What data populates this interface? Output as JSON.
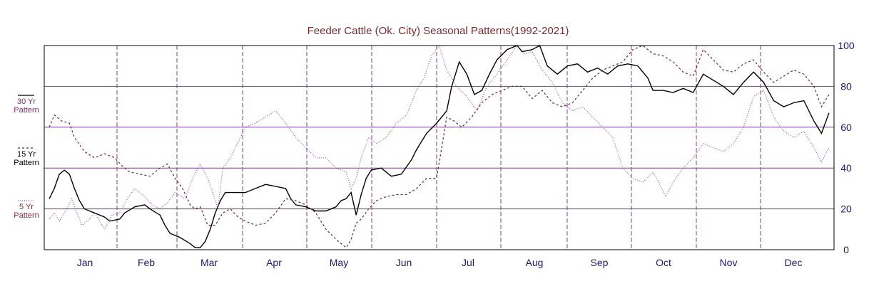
{
  "chart_data": {
    "type": "line",
    "title": "Feeder Cattle (Ok. City) Seasonal Patterns(1992-2021)",
    "xlabel": "",
    "ylabel": "",
    "ylim": [
      0,
      100
    ],
    "y_ticks": [
      0,
      20,
      40,
      60,
      80,
      100
    ],
    "grid": true,
    "legend_position": "left",
    "months": [
      "Jan",
      "Feb",
      "Mar",
      "Apr",
      "May",
      "Jun",
      "Jul",
      "Aug",
      "Sep",
      "Oct",
      "Nov",
      "Dec"
    ],
    "x_unit": "month (fractional, 0 = Jan 1, 12 = Dec 31)",
    "series": [
      {
        "name": "30 Yr Pattern",
        "legend_line1": "30 Yr",
        "legend_line2": "Pattern",
        "color": "#000000",
        "dash": "solid",
        "points": [
          [
            0.1,
            25
          ],
          [
            0.2,
            30
          ],
          [
            0.3,
            37
          ],
          [
            0.4,
            39
          ],
          [
            0.5,
            37
          ],
          [
            0.6,
            30
          ],
          [
            0.7,
            24
          ],
          [
            0.8,
            20
          ],
          [
            1.0,
            18
          ],
          [
            1.2,
            16
          ],
          [
            1.3,
            14
          ],
          [
            1.5,
            15
          ],
          [
            1.6,
            18
          ],
          [
            1.8,
            21
          ],
          [
            2.0,
            22
          ],
          [
            2.1,
            20
          ],
          [
            2.3,
            17
          ],
          [
            2.4,
            12
          ],
          [
            2.5,
            8
          ],
          [
            2.7,
            6
          ],
          [
            2.9,
            3
          ],
          [
            3.0,
            1
          ],
          [
            3.1,
            1
          ],
          [
            3.2,
            4
          ],
          [
            3.3,
            10
          ],
          [
            3.4,
            18
          ],
          [
            3.5,
            24
          ],
          [
            3.6,
            28
          ],
          [
            3.8,
            28
          ],
          [
            4.0,
            28
          ],
          [
            4.2,
            30
          ],
          [
            4.4,
            32
          ],
          [
            4.6,
            31
          ],
          [
            4.8,
            30
          ],
          [
            4.9,
            25
          ],
          [
            5.0,
            22
          ],
          [
            5.2,
            21
          ],
          [
            5.4,
            19
          ],
          [
            5.6,
            19
          ],
          [
            5.8,
            21
          ],
          [
            5.9,
            24
          ],
          [
            6.0,
            25
          ],
          [
            6.1,
            28
          ],
          [
            6.2,
            17
          ],
          [
            6.3,
            27
          ],
          [
            6.4,
            35
          ],
          [
            6.5,
            39
          ],
          [
            6.7,
            40
          ],
          [
            6.9,
            36
          ],
          [
            7.1,
            37
          ],
          [
            7.3,
            44
          ],
          [
            7.4,
            49
          ],
          [
            7.6,
            57
          ],
          [
            7.8,
            62
          ],
          [
            8.0,
            68
          ],
          [
            8.1,
            80
          ],
          [
            8.25,
            92
          ],
          [
            8.4,
            86
          ],
          [
            8.55,
            76
          ],
          [
            8.7,
            78
          ],
          [
            8.85,
            86
          ],
          [
            9.0,
            93
          ],
          [
            9.2,
            98
          ],
          [
            9.4,
            100
          ],
          [
            9.5,
            97
          ],
          [
            9.7,
            98
          ],
          [
            9.85,
            100
          ],
          [
            10.0,
            90
          ],
          [
            10.2,
            86
          ],
          [
            10.4,
            90
          ],
          [
            10.6,
            91
          ],
          [
            10.8,
            87
          ],
          [
            11.0,
            89
          ],
          [
            11.2,
            86
          ],
          [
            11.4,
            90
          ],
          [
            11.6,
            91
          ],
          [
            11.8,
            90
          ],
          [
            12.0,
            84
          ],
          [
            12.1,
            78
          ],
          [
            12.3,
            78
          ],
          [
            12.5,
            77
          ],
          [
            12.7,
            79
          ],
          [
            12.9,
            77
          ],
          [
            13.1,
            86
          ],
          [
            13.3,
            83
          ],
          [
            13.5,
            80
          ],
          [
            13.7,
            76
          ],
          [
            13.9,
            82
          ],
          [
            14.1,
            87
          ],
          [
            14.3,
            82
          ],
          [
            14.5,
            73
          ],
          [
            14.7,
            70
          ],
          [
            14.9,
            72
          ],
          [
            15.1,
            73
          ],
          [
            15.3,
            63
          ],
          [
            15.45,
            57
          ],
          [
            15.6,
            67
          ]
        ]
      },
      {
        "name": "15 Yr Pattern",
        "legend_line1": "15 Yr",
        "legend_line2": "Pattern",
        "color": "#6b2a30",
        "dash": "3,3",
        "points": [
          [
            0.1,
            60
          ],
          [
            0.2,
            66
          ],
          [
            0.35,
            63
          ],
          [
            0.5,
            62
          ],
          [
            0.6,
            55
          ],
          [
            0.8,
            48
          ],
          [
            1.0,
            45
          ],
          [
            1.2,
            47
          ],
          [
            1.4,
            45
          ],
          [
            1.55,
            41
          ],
          [
            1.7,
            38
          ],
          [
            1.9,
            37
          ],
          [
            2.1,
            36
          ],
          [
            2.3,
            40
          ],
          [
            2.45,
            42
          ],
          [
            2.6,
            35
          ],
          [
            2.75,
            30
          ],
          [
            2.9,
            22
          ],
          [
            3.0,
            20
          ],
          [
            3.1,
            21
          ],
          [
            3.25,
            12
          ],
          [
            3.4,
            12
          ],
          [
            3.55,
            18
          ],
          [
            3.7,
            20
          ],
          [
            3.85,
            16
          ],
          [
            4.0,
            14
          ],
          [
            4.2,
            12
          ],
          [
            4.4,
            13
          ],
          [
            4.6,
            18
          ],
          [
            4.8,
            25
          ],
          [
            5.0,
            24
          ],
          [
            5.2,
            22
          ],
          [
            5.4,
            18
          ],
          [
            5.6,
            10
          ],
          [
            5.8,
            5
          ],
          [
            6.0,
            1
          ],
          [
            6.1,
            5
          ],
          [
            6.2,
            13
          ],
          [
            6.3,
            15
          ],
          [
            6.45,
            20
          ],
          [
            6.6,
            24
          ],
          [
            6.8,
            26
          ],
          [
            7.0,
            27
          ],
          [
            7.2,
            27
          ],
          [
            7.4,
            30
          ],
          [
            7.6,
            35
          ],
          [
            7.8,
            35
          ],
          [
            8.0,
            65
          ],
          [
            8.15,
            63
          ],
          [
            8.3,
            60
          ],
          [
            8.5,
            65
          ],
          [
            8.7,
            72
          ],
          [
            8.9,
            76
          ],
          [
            9.1,
            78
          ],
          [
            9.3,
            80
          ],
          [
            9.5,
            80
          ],
          [
            9.7,
            74
          ],
          [
            9.9,
            78
          ],
          [
            10.1,
            72
          ],
          [
            10.3,
            70
          ],
          [
            10.5,
            72
          ],
          [
            10.7,
            78
          ],
          [
            10.9,
            84
          ],
          [
            11.1,
            88
          ],
          [
            11.3,
            90
          ],
          [
            11.5,
            92
          ],
          [
            11.7,
            98
          ],
          [
            11.9,
            100
          ],
          [
            12.1,
            96
          ],
          [
            12.3,
            95
          ],
          [
            12.5,
            92
          ],
          [
            12.7,
            87
          ],
          [
            12.9,
            85
          ],
          [
            13.1,
            98
          ],
          [
            13.3,
            93
          ],
          [
            13.5,
            88
          ],
          [
            13.7,
            87
          ],
          [
            13.9,
            91
          ],
          [
            14.1,
            93
          ],
          [
            14.3,
            87
          ],
          [
            14.5,
            82
          ],
          [
            14.7,
            85
          ],
          [
            14.9,
            88
          ],
          [
            15.1,
            86
          ],
          [
            15.3,
            80
          ],
          [
            15.45,
            70
          ],
          [
            15.6,
            76
          ]
        ]
      },
      {
        "name": "5 Yr Pattern",
        "legend_line1": "5 Yr",
        "legend_line2": "Pattern",
        "color": "#9155a8",
        "dash": "1,2",
        "points": [
          [
            0.1,
            15
          ],
          [
            0.2,
            18
          ],
          [
            0.3,
            14
          ],
          [
            0.45,
            20
          ],
          [
            0.55,
            25
          ],
          [
            0.65,
            18
          ],
          [
            0.75,
            12
          ],
          [
            0.9,
            15
          ],
          [
            1.0,
            18
          ],
          [
            1.2,
            10
          ],
          [
            1.35,
            17
          ],
          [
            1.5,
            18
          ],
          [
            1.65,
            25
          ],
          [
            1.8,
            30
          ],
          [
            2.0,
            26
          ],
          [
            2.15,
            22
          ],
          [
            2.3,
            20
          ],
          [
            2.45,
            23
          ],
          [
            2.6,
            28
          ],
          [
            2.8,
            25
          ],
          [
            2.95,
            35
          ],
          [
            3.1,
            42
          ],
          [
            3.25,
            35
          ],
          [
            3.35,
            28
          ],
          [
            3.45,
            20
          ],
          [
            3.55,
            40
          ],
          [
            3.7,
            45
          ],
          [
            3.9,
            55
          ],
          [
            4.0,
            60
          ],
          [
            4.2,
            62
          ],
          [
            4.4,
            65
          ],
          [
            4.6,
            68
          ],
          [
            4.8,
            62
          ],
          [
            5.0,
            55
          ],
          [
            5.2,
            50
          ],
          [
            5.4,
            45
          ],
          [
            5.6,
            45
          ],
          [
            5.8,
            40
          ],
          [
            6.0,
            38
          ],
          [
            6.1,
            30
          ],
          [
            6.2,
            35
          ],
          [
            6.3,
            45
          ],
          [
            6.45,
            55
          ],
          [
            6.6,
            52
          ],
          [
            6.8,
            55
          ],
          [
            7.0,
            62
          ],
          [
            7.2,
            66
          ],
          [
            7.4,
            78
          ],
          [
            7.55,
            84
          ],
          [
            7.7,
            95
          ],
          [
            7.85,
            100
          ],
          [
            8.0,
            88
          ],
          [
            8.2,
            80
          ],
          [
            8.4,
            75
          ],
          [
            8.6,
            68
          ],
          [
            8.8,
            80
          ],
          [
            9.0,
            86
          ],
          [
            9.2,
            93
          ],
          [
            9.4,
            100
          ],
          [
            9.55,
            96
          ],
          [
            9.7,
            97
          ],
          [
            9.9,
            88
          ],
          [
            10.1,
            82
          ],
          [
            10.3,
            72
          ],
          [
            10.5,
            68
          ],
          [
            10.7,
            70
          ],
          [
            10.9,
            65
          ],
          [
            11.1,
            60
          ],
          [
            11.3,
            55
          ],
          [
            11.5,
            40
          ],
          [
            11.7,
            35
          ],
          [
            11.9,
            33
          ],
          [
            12.1,
            38
          ],
          [
            12.2,
            34
          ],
          [
            12.35,
            26
          ],
          [
            12.5,
            33
          ],
          [
            12.7,
            40
          ],
          [
            12.9,
            45
          ],
          [
            13.1,
            52
          ],
          [
            13.3,
            50
          ],
          [
            13.5,
            48
          ],
          [
            13.7,
            52
          ],
          [
            13.9,
            60
          ],
          [
            14.1,
            75
          ],
          [
            14.3,
            78
          ],
          [
            14.5,
            65
          ],
          [
            14.7,
            58
          ],
          [
            14.9,
            55
          ],
          [
            15.1,
            58
          ],
          [
            15.3,
            50
          ],
          [
            15.45,
            43
          ],
          [
            15.6,
            50
          ]
        ]
      }
    ]
  }
}
